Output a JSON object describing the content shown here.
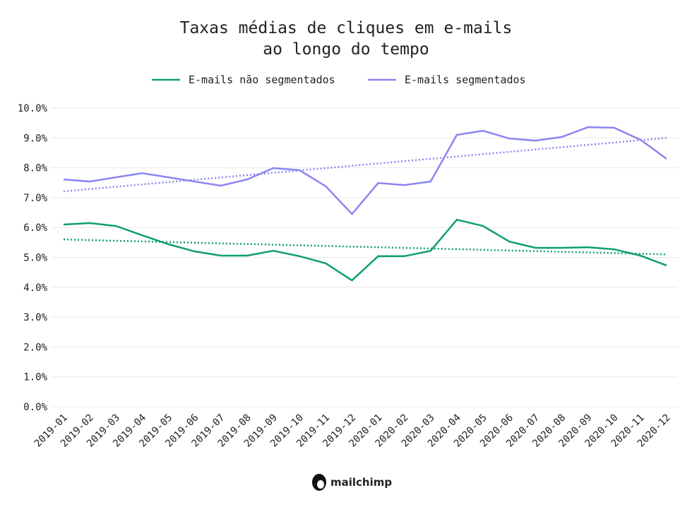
{
  "chart_data": {
    "type": "line",
    "title_line1": "Taxas médias de cliques em e-mails",
    "title_line2": "ao longo do tempo",
    "xlabel": "",
    "ylabel": "",
    "ylim": [
      0,
      10
    ],
    "yticks": [
      "0.0%",
      "1.0%",
      "2.0%",
      "3.0%",
      "4.0%",
      "5.0%",
      "6.0%",
      "7.0%",
      "8.0%",
      "9.0%",
      "10.0%"
    ],
    "grid": true,
    "legend_position": "top",
    "categories": [
      "2019-01",
      "2019-02",
      "2019-03",
      "2019-04",
      "2019-05",
      "2019-06",
      "2019-07",
      "2019-08",
      "2019-09",
      "2019-10",
      "2019-11",
      "2019-12",
      "2020-01",
      "2020-02",
      "2020-03",
      "2020-04",
      "2020-05",
      "2020-06",
      "2020-07",
      "2020-08",
      "2020-09",
      "2020-10",
      "2020-11",
      "2020-12"
    ],
    "series": [
      {
        "name": "E-mails não segmentados",
        "color": "#0e9f6e",
        "values": [
          6.1,
          6.15,
          6.05,
          5.74,
          5.44,
          5.2,
          5.06,
          5.06,
          5.22,
          5.04,
          4.8,
          4.23,
          5.04,
          5.04,
          5.22,
          6.26,
          6.05,
          5.53,
          5.32,
          5.32,
          5.34,
          5.27,
          5.06,
          4.73
        ],
        "trend": [
          5.6,
          5.1
        ]
      },
      {
        "name": "E-mails segmentados",
        "color": "#8b85f0",
        "values": [
          7.61,
          7.54,
          7.68,
          7.82,
          7.68,
          7.54,
          7.4,
          7.61,
          7.99,
          7.92,
          7.38,
          6.45,
          7.49,
          7.42,
          7.54,
          9.1,
          9.24,
          8.98,
          8.91,
          9.03,
          9.36,
          9.34,
          8.94,
          8.3
        ],
        "trend": [
          7.21,
          9.0
        ]
      }
    ]
  },
  "footer": {
    "logo_text": "mailchimp"
  }
}
